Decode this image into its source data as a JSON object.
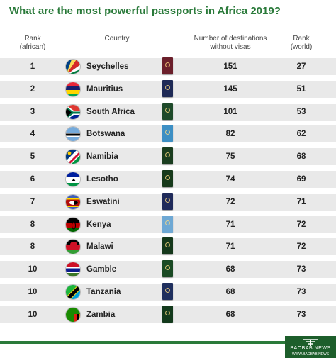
{
  "title": "What are the most powerful passports in Africa 2019?",
  "headers": {
    "rank_african": [
      "Rank",
      "(african)"
    ],
    "country": "Country",
    "destinations": [
      "Number of destinations",
      "without visas"
    ],
    "rank_world": [
      "Rank",
      "(world)"
    ]
  },
  "rows": [
    {
      "rank": "1",
      "country": "Seychelles",
      "destinations": "151",
      "world_rank": "27",
      "flag_icon": "seychelles-flag",
      "passport_color": "#6b1f2b"
    },
    {
      "rank": "2",
      "country": "Mauritius",
      "destinations": "145",
      "world_rank": "51",
      "flag_icon": "mauritius-flag",
      "passport_color": "#1f2a56"
    },
    {
      "rank": "3",
      "country": "South Africa",
      "destinations": "101",
      "world_rank": "53",
      "flag_icon": "south-africa-flag",
      "passport_color": "#1e4a2a"
    },
    {
      "rank": "4",
      "country": "Botswana",
      "destinations": "82",
      "world_rank": "62",
      "flag_icon": "botswana-flag",
      "passport_color": "#3d8fc4"
    },
    {
      "rank": "5",
      "country": "Namibia",
      "destinations": "75",
      "world_rank": "68",
      "flag_icon": "namibia-flag",
      "passport_color": "#1a3d1f"
    },
    {
      "rank": "6",
      "country": "Lesotho",
      "destinations": "74",
      "world_rank": "69",
      "flag_icon": "lesotho-flag",
      "passport_color": "#173a1b"
    },
    {
      "rank": "7",
      "country": "Eswatini",
      "destinations": "72",
      "world_rank": "71",
      "flag_icon": "eswatini-flag",
      "passport_color": "#1f2a5a"
    },
    {
      "rank": "8",
      "country": "Kenya",
      "destinations": "71",
      "world_rank": "72",
      "flag_icon": "kenya-flag",
      "passport_color": "#6ea8d4"
    },
    {
      "rank": "8",
      "country": "Malawi",
      "destinations": "71",
      "world_rank": "72",
      "flag_icon": "malawi-flag",
      "passport_color": "#15381b"
    },
    {
      "rank": "10",
      "country": "Gamble",
      "destinations": "68",
      "world_rank": "73",
      "flag_icon": "gambia-flag",
      "passport_color": "#1a4a24"
    },
    {
      "rank": "10",
      "country": "Tanzania",
      "destinations": "68",
      "world_rank": "73",
      "flag_icon": "tanzania-flag",
      "passport_color": "#1f2f5e"
    },
    {
      "rank": "10",
      "country": "Zambia",
      "destinations": "68",
      "world_rank": "73",
      "flag_icon": "zambia-flag",
      "passport_color": "#133a1c"
    }
  ],
  "footer": {
    "brand": "BAOBAB NEWS",
    "url": "WWW.BAOBAB.NEWS",
    "brand_color": "#1d5e2b",
    "accent_color": "#2a7a3a"
  }
}
